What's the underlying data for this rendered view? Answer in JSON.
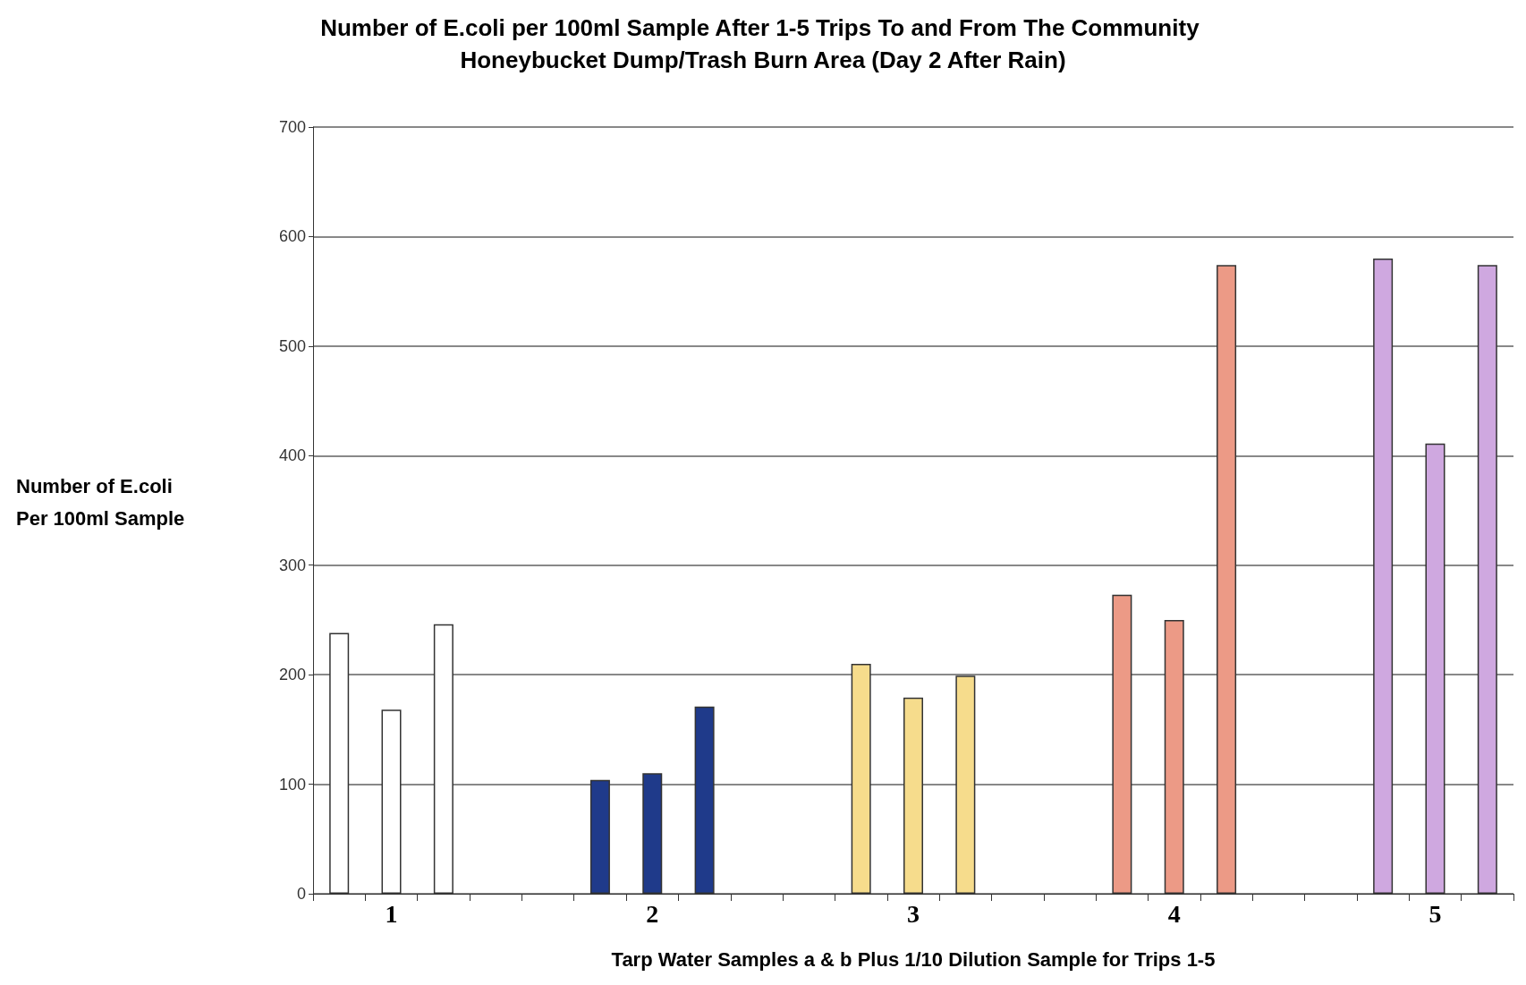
{
  "chart_data": {
    "type": "bar",
    "title": "Number of E.coli per 100ml Sample After 1-5 Trips To and From The Community Honeybucket Dump/Trash Burn Area (Day 2 After Rain)",
    "xlabel": "Tarp Water Samples a & b Plus 1/10 Dilution Sample for Trips 1-5",
    "ylabel": "Number of E.coli Per 100ml Sample",
    "categories": [
      null,
      "1",
      null,
      null,
      null,
      null,
      "2",
      null,
      null,
      null,
      null,
      "3",
      null,
      null,
      null,
      null,
      "4",
      null,
      null,
      null,
      null,
      "5",
      null
    ],
    "values": [
      238,
      168,
      246,
      null,
      null,
      104,
      110,
      171,
      null,
      null,
      210,
      179,
      199,
      null,
      null,
      273,
      250,
      574,
      null,
      null,
      580,
      411,
      574
    ],
    "colors": [
      "#ffffff",
      "#ffffff",
      "#ffffff",
      null,
      null,
      "#1f3a8a",
      "#1f3a8a",
      "#1f3a8a",
      null,
      null,
      "#f6dc8c",
      "#f6dc8c",
      "#f6dc8c",
      null,
      null,
      "#ec9a86",
      "#ec9a86",
      "#ec9a86",
      null,
      null,
      "#cfa8e0",
      "#cfa8e0",
      "#cfa8e0"
    ],
    "ylim": [
      0,
      700
    ],
    "yticks": [
      0,
      100,
      200,
      300,
      400,
      500,
      600,
      700
    ],
    "grid": "y"
  }
}
